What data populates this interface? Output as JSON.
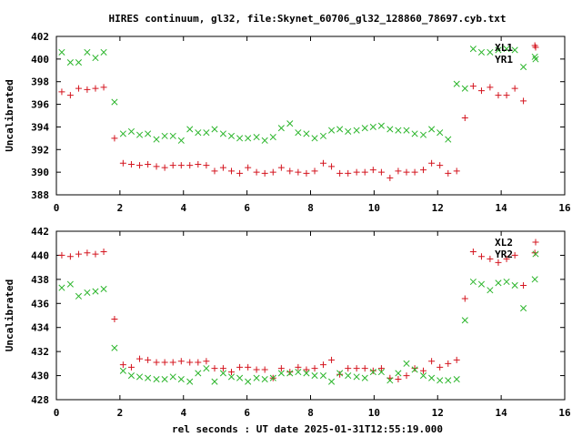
{
  "figure": {
    "title": "HIRES continuum, gl32, file:Skynet_60706_gl32_128860_78697.cyb.txt",
    "xlabel": "rel seconds : UT date 2025-01-31T12:55:19.000"
  },
  "colors": {
    "red": "#d4141e",
    "green": "#2bb52b",
    "axis": "#000000"
  },
  "chart_data": [
    {
      "type": "scatter",
      "ylabel": "Uncalibrated",
      "xlim": [
        0,
        16
      ],
      "ylim": [
        388,
        402
      ],
      "xticks": [
        0,
        2,
        4,
        6,
        8,
        10,
        12,
        14,
        16
      ],
      "yticks": [
        388,
        390,
        392,
        394,
        396,
        398,
        400,
        402
      ],
      "grid": false,
      "legend_position": "top-right",
      "series": [
        {
          "name": "XL1",
          "marker": "plus",
          "color": "#d4141e",
          "points": [
            [
              0.17,
              397.1
            ],
            [
              0.44,
              396.8
            ],
            [
              0.7,
              397.4
            ],
            [
              0.97,
              397.3
            ],
            [
              1.23,
              397.4
            ],
            [
              1.49,
              397.5
            ],
            [
              1.83,
              393.0
            ],
            [
              2.1,
              390.8
            ],
            [
              2.36,
              390.7
            ],
            [
              2.62,
              390.6
            ],
            [
              2.88,
              390.7
            ],
            [
              3.15,
              390.5
            ],
            [
              3.41,
              390.4
            ],
            [
              3.67,
              390.6
            ],
            [
              3.93,
              390.6
            ],
            [
              4.2,
              390.6
            ],
            [
              4.46,
              390.7
            ],
            [
              4.72,
              390.6
            ],
            [
              4.98,
              390.1
            ],
            [
              5.25,
              390.4
            ],
            [
              5.51,
              390.1
            ],
            [
              5.77,
              389.9
            ],
            [
              6.03,
              390.4
            ],
            [
              6.3,
              390.0
            ],
            [
              6.56,
              389.9
            ],
            [
              6.82,
              390.0
            ],
            [
              7.08,
              390.4
            ],
            [
              7.35,
              390.1
            ],
            [
              7.61,
              390.0
            ],
            [
              7.87,
              389.9
            ],
            [
              8.13,
              390.1
            ],
            [
              8.4,
              390.8
            ],
            [
              8.66,
              390.5
            ],
            [
              8.92,
              389.9
            ],
            [
              9.18,
              389.9
            ],
            [
              9.45,
              390.0
            ],
            [
              9.71,
              390.0
            ],
            [
              9.97,
              390.2
            ],
            [
              10.23,
              390.0
            ],
            [
              10.5,
              389.5
            ],
            [
              10.76,
              390.1
            ],
            [
              11.02,
              390.0
            ],
            [
              11.28,
              390.0
            ],
            [
              11.55,
              390.2
            ],
            [
              11.81,
              390.8
            ],
            [
              12.07,
              390.6
            ],
            [
              12.33,
              389.9
            ],
            [
              12.6,
              390.1
            ],
            [
              12.86,
              394.8
            ],
            [
              13.12,
              397.6
            ],
            [
              13.38,
              397.2
            ],
            [
              13.65,
              397.5
            ],
            [
              13.91,
              396.8
            ],
            [
              14.17,
              396.8
            ],
            [
              14.43,
              397.4
            ],
            [
              14.7,
              396.3
            ],
            [
              15.06,
              401.2
            ]
          ]
        },
        {
          "name": "YR1",
          "marker": "cross",
          "color": "#2bb52b",
          "points": [
            [
              0.17,
              400.6
            ],
            [
              0.44,
              399.7
            ],
            [
              0.7,
              399.7
            ],
            [
              0.97,
              400.6
            ],
            [
              1.23,
              400.1
            ],
            [
              1.49,
              400.6
            ],
            [
              1.83,
              396.2
            ],
            [
              2.1,
              393.4
            ],
            [
              2.36,
              393.6
            ],
            [
              2.62,
              393.3
            ],
            [
              2.88,
              393.4
            ],
            [
              3.15,
              392.9
            ],
            [
              3.41,
              393.2
            ],
            [
              3.67,
              393.2
            ],
            [
              3.93,
              392.8
            ],
            [
              4.2,
              393.8
            ],
            [
              4.46,
              393.5
            ],
            [
              4.72,
              393.5
            ],
            [
              4.98,
              393.8
            ],
            [
              5.25,
              393.4
            ],
            [
              5.51,
              393.2
            ],
            [
              5.77,
              393.0
            ],
            [
              6.03,
              393.0
            ],
            [
              6.3,
              393.1
            ],
            [
              6.56,
              392.8
            ],
            [
              6.82,
              393.1
            ],
            [
              7.08,
              393.9
            ],
            [
              7.35,
              394.3
            ],
            [
              7.61,
              393.5
            ],
            [
              7.87,
              393.4
            ],
            [
              8.13,
              393.0
            ],
            [
              8.4,
              393.2
            ],
            [
              8.66,
              393.7
            ],
            [
              8.92,
              393.8
            ],
            [
              9.18,
              393.6
            ],
            [
              9.45,
              393.7
            ],
            [
              9.71,
              393.9
            ],
            [
              9.97,
              394.0
            ],
            [
              10.23,
              394.1
            ],
            [
              10.5,
              393.8
            ],
            [
              10.76,
              393.7
            ],
            [
              11.02,
              393.7
            ],
            [
              11.28,
              393.4
            ],
            [
              11.55,
              393.3
            ],
            [
              11.81,
              393.8
            ],
            [
              12.07,
              393.5
            ],
            [
              12.33,
              392.9
            ],
            [
              12.6,
              397.8
            ],
            [
              12.86,
              397.4
            ],
            [
              13.12,
              400.9
            ],
            [
              13.38,
              400.6
            ],
            [
              13.65,
              400.6
            ],
            [
              13.91,
              400.8
            ],
            [
              14.17,
              400.9
            ],
            [
              14.43,
              400.8
            ],
            [
              14.7,
              399.3
            ],
            [
              15.06,
              400.2
            ]
          ]
        }
      ]
    },
    {
      "type": "scatter",
      "ylabel": "Uncalibrated",
      "xlim": [
        0,
        16
      ],
      "ylim": [
        428,
        442
      ],
      "xticks": [
        0,
        2,
        4,
        6,
        8,
        10,
        12,
        14,
        16
      ],
      "yticks": [
        428,
        430,
        432,
        434,
        436,
        438,
        440,
        442
      ],
      "grid": false,
      "legend_position": "top-right",
      "series": [
        {
          "name": "XL2",
          "marker": "plus",
          "color": "#d4141e",
          "points": [
            [
              0.17,
              440.0
            ],
            [
              0.44,
              439.9
            ],
            [
              0.7,
              440.1
            ],
            [
              0.97,
              440.2
            ],
            [
              1.23,
              440.1
            ],
            [
              1.49,
              440.3
            ],
            [
              1.83,
              434.7
            ],
            [
              2.1,
              430.9
            ],
            [
              2.36,
              430.7
            ],
            [
              2.62,
              431.4
            ],
            [
              2.88,
              431.3
            ],
            [
              3.15,
              431.1
            ],
            [
              3.41,
              431.1
            ],
            [
              3.67,
              431.1
            ],
            [
              3.93,
              431.2
            ],
            [
              4.2,
              431.1
            ],
            [
              4.46,
              431.1
            ],
            [
              4.72,
              431.2
            ],
            [
              4.98,
              430.6
            ],
            [
              5.25,
              430.6
            ],
            [
              5.51,
              430.3
            ],
            [
              5.77,
              430.7
            ],
            [
              6.03,
              430.7
            ],
            [
              6.3,
              430.5
            ],
            [
              6.56,
              430.5
            ],
            [
              6.82,
              429.8
            ],
            [
              7.08,
              430.6
            ],
            [
              7.35,
              430.3
            ],
            [
              7.61,
              430.7
            ],
            [
              7.87,
              430.5
            ],
            [
              8.13,
              430.6
            ],
            [
              8.4,
              430.9
            ],
            [
              8.66,
              431.3
            ],
            [
              8.92,
              430.1
            ],
            [
              9.18,
              430.6
            ],
            [
              9.45,
              430.6
            ],
            [
              9.71,
              430.6
            ],
            [
              9.97,
              430.4
            ],
            [
              10.23,
              430.6
            ],
            [
              10.5,
              429.8
            ],
            [
              10.76,
              429.7
            ],
            [
              11.02,
              430.0
            ],
            [
              11.28,
              430.6
            ],
            [
              11.55,
              430.4
            ],
            [
              11.81,
              431.2
            ],
            [
              12.07,
              430.7
            ],
            [
              12.33,
              431.0
            ],
            [
              12.6,
              431.3
            ],
            [
              12.86,
              436.4
            ],
            [
              13.12,
              440.3
            ],
            [
              13.38,
              439.9
            ],
            [
              13.65,
              439.7
            ],
            [
              13.91,
              439.4
            ],
            [
              14.17,
              439.7
            ],
            [
              14.43,
              440.0
            ],
            [
              14.7,
              437.5
            ],
            [
              15.06,
              440.2
            ]
          ]
        },
        {
          "name": "YR2",
          "marker": "cross",
          "color": "#2bb52b",
          "points": [
            [
              0.17,
              437.3
            ],
            [
              0.44,
              437.6
            ],
            [
              0.7,
              436.6
            ],
            [
              0.97,
              436.9
            ],
            [
              1.23,
              437.0
            ],
            [
              1.49,
              437.2
            ],
            [
              1.83,
              432.3
            ],
            [
              2.1,
              430.4
            ],
            [
              2.36,
              430.0
            ],
            [
              2.62,
              429.9
            ],
            [
              2.88,
              429.8
            ],
            [
              3.15,
              429.7
            ],
            [
              3.41,
              429.7
            ],
            [
              3.67,
              429.9
            ],
            [
              3.93,
              429.7
            ],
            [
              4.2,
              429.5
            ],
            [
              4.46,
              430.2
            ],
            [
              4.72,
              430.6
            ],
            [
              4.98,
              429.5
            ],
            [
              5.25,
              430.2
            ],
            [
              5.51,
              429.9
            ],
            [
              5.77,
              429.8
            ],
            [
              6.03,
              429.5
            ],
            [
              6.3,
              429.8
            ],
            [
              6.56,
              429.7
            ],
            [
              6.82,
              429.8
            ],
            [
              7.08,
              430.2
            ],
            [
              7.35,
              430.2
            ],
            [
              7.61,
              430.3
            ],
            [
              7.87,
              430.2
            ],
            [
              8.13,
              430.0
            ],
            [
              8.4,
              430.0
            ],
            [
              8.66,
              429.5
            ],
            [
              8.92,
              430.2
            ],
            [
              9.18,
              430.0
            ],
            [
              9.45,
              429.9
            ],
            [
              9.71,
              429.8
            ],
            [
              9.97,
              430.3
            ],
            [
              10.23,
              430.3
            ],
            [
              10.5,
              429.6
            ],
            [
              10.76,
              430.2
            ],
            [
              11.02,
              431.0
            ],
            [
              11.28,
              430.5
            ],
            [
              11.55,
              430.0
            ],
            [
              11.81,
              429.8
            ],
            [
              12.07,
              429.6
            ],
            [
              12.33,
              429.6
            ],
            [
              12.6,
              429.7
            ],
            [
              12.86,
              434.6
            ],
            [
              13.12,
              437.8
            ],
            [
              13.38,
              437.6
            ],
            [
              13.65,
              437.1
            ],
            [
              13.91,
              437.7
            ],
            [
              14.17,
              437.8
            ],
            [
              14.43,
              437.5
            ],
            [
              14.7,
              435.6
            ],
            [
              15.06,
              438.0
            ]
          ]
        }
      ]
    }
  ]
}
